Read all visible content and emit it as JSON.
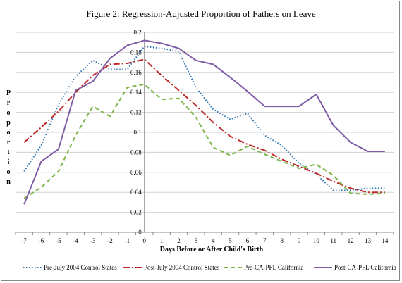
{
  "chart_data": {
    "type": "line",
    "title": "Figure 2: Regression-Adjusted Proportion of Fathers on Leave",
    "xlabel": "Days Before or After Child's Birth",
    "ylabel": "Proportion",
    "x": [
      -7,
      -6,
      -5,
      -4,
      -3,
      -2,
      -1,
      0,
      1,
      2,
      3,
      4,
      5,
      6,
      7,
      8,
      9,
      10,
      11,
      12,
      13,
      14
    ],
    "ylim": [
      0,
      0.2
    ],
    "yticks": [
      "0",
      "0.02",
      "0.04",
      "0.06",
      "0.08",
      "0.1",
      "0.12",
      "0.14",
      "0.16",
      "0.18",
      "0.2"
    ],
    "grid": true,
    "legend_position": "bottom",
    "series": [
      {
        "name": "Pre-July 2004 Control States",
        "color": "#2e75b6",
        "style": "dotted",
        "values": [
          0.061,
          0.087,
          0.128,
          0.156,
          0.172,
          0.163,
          0.163,
          0.186,
          0.184,
          0.181,
          0.145,
          0.123,
          0.113,
          0.119,
          0.097,
          0.087,
          0.069,
          0.058,
          0.042,
          0.042,
          0.044,
          0.044
        ]
      },
      {
        "name": "Post-July 2004 Control States",
        "color": "#c0292a",
        "style": "dash-dot",
        "values": [
          0.09,
          0.105,
          0.121,
          0.14,
          0.157,
          0.168,
          0.169,
          0.173,
          0.157,
          0.142,
          0.127,
          0.11,
          0.096,
          0.088,
          0.082,
          0.073,
          0.066,
          0.059,
          0.051,
          0.044,
          0.04,
          0.04
        ]
      },
      {
        "name": "Pre-CA-PFL California",
        "color": "#7ab648",
        "style": "dashed",
        "values": [
          0.034,
          0.045,
          0.061,
          0.097,
          0.126,
          0.116,
          0.145,
          0.148,
          0.133,
          0.134,
          0.115,
          0.085,
          0.077,
          0.086,
          0.078,
          0.071,
          0.064,
          0.068,
          0.057,
          0.039,
          0.038,
          0.039
        ]
      },
      {
        "name": "Post-CA-PFL California",
        "color": "#7f5ba6",
        "style": "solid",
        "values": [
          0.028,
          0.071,
          0.083,
          0.142,
          0.151,
          0.174,
          0.187,
          0.192,
          0.189,
          0.184,
          0.172,
          0.168,
          0.155,
          0.141,
          0.126,
          0.126,
          0.126,
          0.138,
          0.107,
          0.09,
          0.081,
          0.081
        ]
      }
    ]
  }
}
